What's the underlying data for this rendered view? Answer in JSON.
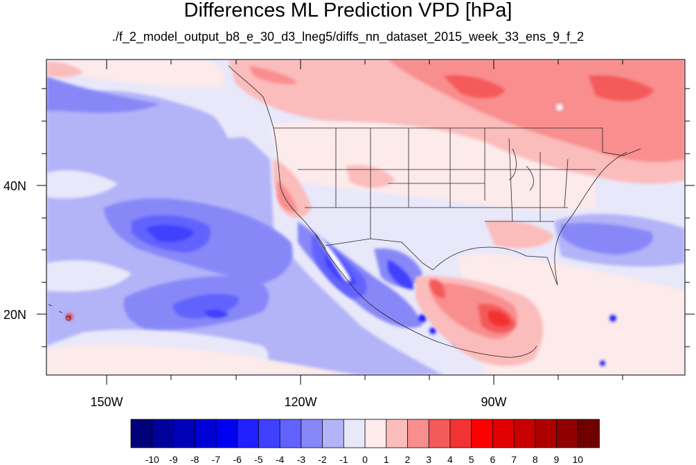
{
  "title": "Differences ML Prediction VPD [hPa]",
  "subtitle": "./f_2_model_output_b8_e_30_d3_lneg5/diffs_nn_dataset_2015_week_33_ens_9_f_2",
  "map": {
    "region": "Contiguous United States and adjacent Pacific / Mexico",
    "lon_range": [
      -160,
      -61
    ],
    "lat_range": [
      10,
      59
    ],
    "x_ticks": [
      "150W",
      "120W",
      "90W"
    ],
    "y_ticks": [
      "40N",
      "20N"
    ],
    "background_value": -1
  },
  "colorbar": {
    "labels": [
      "-10",
      "-9",
      "-8",
      "-7",
      "-6",
      "-5",
      "-4",
      "-3",
      "-2",
      "-1",
      "0",
      "1",
      "2",
      "3",
      "4",
      "5",
      "6",
      "7",
      "8",
      "9",
      "10"
    ],
    "colors": [
      "#00007b",
      "#00009a",
      "#0000b8",
      "#0000d6",
      "#0000f0",
      "#1f1fff",
      "#4040ff",
      "#6262ff",
      "#8787f8",
      "#b3b3f8",
      "#e8e8fa",
      "#fdeaea",
      "#fbbcbc",
      "#f98e8e",
      "#f55a5a",
      "#f23333",
      "#ff0000",
      "#e20000",
      "#c80000",
      "#ae0000",
      "#900000",
      "#700000"
    ]
  }
}
